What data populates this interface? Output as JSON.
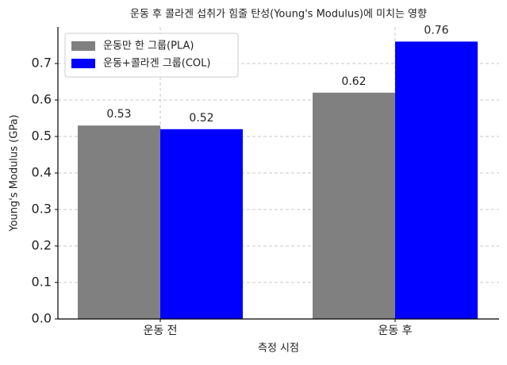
{
  "chart_data": {
    "type": "bar",
    "title": "운동 후 콜라겐 섭취가 힘줄 탄성(Young's Modulus)에 미치는 영향",
    "x_label": "측정 시점",
    "y_label": "Young's Modulus (GPa)",
    "categories": [
      "운동 전",
      "운동 후"
    ],
    "series": [
      {
        "name": "운동만 한 그룹(PLA)",
        "color": "#808080",
        "values": [
          0.53,
          0.62
        ]
      },
      {
        "name": "운동+콜라겐 그룹(COL)",
        "color": "#0000ff",
        "values": [
          0.52,
          0.76
        ]
      }
    ],
    "ylim": [
      0,
      0.8
    ],
    "yticks": [
      {
        "value": 0,
        "label": "0.0"
      },
      0.1,
      0.2,
      0.3,
      0.4,
      0.5,
      0.6,
      0.7
    ],
    "grid": true,
    "legend": "upper left"
  }
}
